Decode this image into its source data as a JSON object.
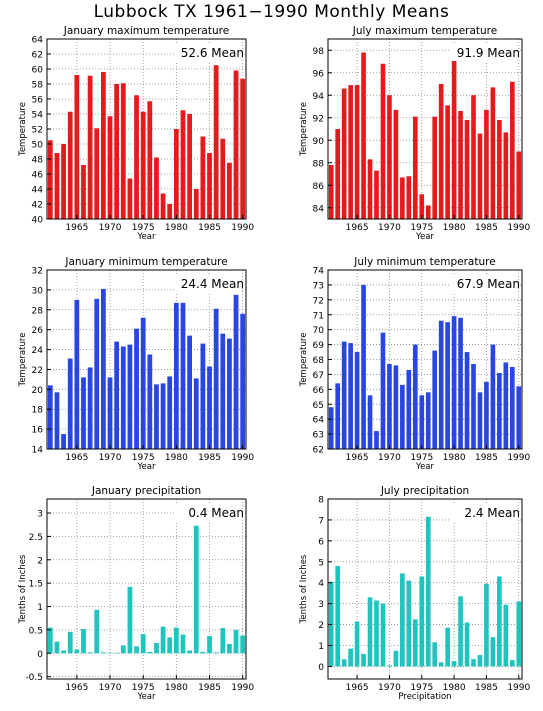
{
  "page_title": "Lubbock TX   1961−1990 Monthly Means",
  "colors": {
    "red": "#e41a1c",
    "blue": "#2a46e0",
    "teal": "#20c4bf",
    "grid": "#888888"
  },
  "chart_data": [
    {
      "type": "bar",
      "title": "January maximum temperature",
      "xlabel": "Year",
      "ylabel": "Temperature",
      "mean_label": "52.6 Mean",
      "color": "red",
      "grid": true,
      "xlim": [
        1961,
        1990
      ],
      "ylim": [
        40,
        64
      ],
      "yticks": [
        40,
        42,
        44,
        46,
        48,
        50,
        52,
        54,
        56,
        58,
        60,
        62,
        64
      ],
      "xticks": [
        1965,
        1970,
        1975,
        1980,
        1985,
        1990
      ],
      "x": [
        1961,
        1962,
        1963,
        1964,
        1965,
        1966,
        1967,
        1968,
        1969,
        1970,
        1971,
        1972,
        1973,
        1974,
        1975,
        1976,
        1977,
        1978,
        1979,
        1980,
        1981,
        1982,
        1983,
        1984,
        1985,
        1986,
        1987,
        1988,
        1989,
        1990
      ],
      "values": [
        50.5,
        48.8,
        50,
        54.3,
        59.2,
        47.2,
        59.1,
        52.1,
        59.6,
        53.7,
        58,
        58.1,
        45.4,
        56.5,
        54.3,
        55.7,
        48.2,
        43.4,
        42,
        52,
        54.5,
        54,
        44,
        51,
        48.8,
        60.5,
        50.7,
        47.5,
        59.8,
        58.7
      ]
    },
    {
      "type": "bar",
      "title": "July maximum temperature",
      "xlabel": "Year",
      "ylabel": "Temperature",
      "mean_label": "91.9 Mean",
      "color": "red",
      "grid": true,
      "xlim": [
        1961,
        1990
      ],
      "ylim": [
        83,
        99
      ],
      "yticks": [
        84,
        86,
        88,
        90,
        92,
        94,
        96,
        98
      ],
      "xticks": [
        1965,
        1970,
        1975,
        1980,
        1985,
        1990
      ],
      "x": [
        1961,
        1962,
        1963,
        1964,
        1965,
        1966,
        1967,
        1968,
        1969,
        1970,
        1971,
        1972,
        1973,
        1974,
        1975,
        1976,
        1977,
        1978,
        1979,
        1980,
        1981,
        1982,
        1983,
        1984,
        1985,
        1986,
        1987,
        1988,
        1989,
        1990
      ],
      "values": [
        87.8,
        91,
        94.6,
        94.9,
        94.9,
        97.8,
        88.3,
        87.3,
        96.8,
        94,
        92.7,
        86.7,
        86.8,
        92.1,
        85.2,
        84.2,
        92.1,
        95,
        93.1,
        97.7,
        92.6,
        91.8,
        94,
        90.6,
        92.7,
        94.7,
        91.8,
        90.7,
        95.2,
        89
      ]
    },
    {
      "type": "bar",
      "title": "January minimum temperature",
      "xlabel": "Year",
      "ylabel": "Temperature",
      "mean_label": "24.4 Mean",
      "color": "blue",
      "grid": true,
      "xlim": [
        1961,
        1990
      ],
      "ylim": [
        14,
        32
      ],
      "yticks": [
        14,
        16,
        18,
        20,
        22,
        24,
        26,
        28,
        30,
        32
      ],
      "xticks": [
        1965,
        1970,
        1975,
        1980,
        1985,
        1990
      ],
      "x": [
        1961,
        1962,
        1963,
        1964,
        1965,
        1966,
        1967,
        1968,
        1969,
        1970,
        1971,
        1972,
        1973,
        1974,
        1975,
        1976,
        1977,
        1978,
        1979,
        1980,
        1981,
        1982,
        1983,
        1984,
        1985,
        1986,
        1987,
        1988,
        1989,
        1990
      ],
      "values": [
        20.4,
        19.7,
        15.5,
        23.1,
        29,
        21.2,
        22.2,
        29.1,
        30.1,
        21.2,
        24.8,
        24.3,
        24.5,
        26.1,
        27.2,
        23.5,
        20.5,
        20.6,
        21.3,
        28.7,
        28.7,
        25.4,
        21.1,
        24.6,
        22.3,
        28.1,
        25.6,
        25.1,
        29.5,
        27.6
      ]
    },
    {
      "type": "bar",
      "title": "July minimum temperature",
      "xlabel": "Year",
      "ylabel": "Temperature",
      "mean_label": "67.9 Mean",
      "color": "blue",
      "grid": true,
      "xlim": [
        1961,
        1990
      ],
      "ylim": [
        62,
        74
      ],
      "yticks": [
        62,
        63,
        64,
        65,
        66,
        67,
        68,
        69,
        70,
        71,
        72,
        73,
        74
      ],
      "xticks": [
        1965,
        1970,
        1975,
        1980,
        1985,
        1990
      ],
      "x": [
        1961,
        1962,
        1963,
        1964,
        1965,
        1966,
        1967,
        1968,
        1969,
        1970,
        1971,
        1972,
        1973,
        1974,
        1975,
        1976,
        1977,
        1978,
        1979,
        1980,
        1981,
        1982,
        1983,
        1984,
        1985,
        1986,
        1987,
        1988,
        1989,
        1990
      ],
      "values": [
        64.8,
        66.4,
        69.2,
        69.1,
        68.5,
        73,
        65.6,
        63.2,
        69.8,
        67.7,
        67.6,
        66.3,
        67.3,
        69,
        65.6,
        65.8,
        68.6,
        70.6,
        70.5,
        70.9,
        70.8,
        68.5,
        67.7,
        65.8,
        66.5,
        69,
        67.1,
        67.8,
        67.5,
        66.2
      ]
    },
    {
      "type": "bar",
      "title": "January precipitation",
      "xlabel": "Year",
      "ylabel": "Tenths of Inches",
      "mean_label": "0.4 Mean",
      "color": "teal",
      "grid": true,
      "xlim": [
        1961,
        1990
      ],
      "ylim": [
        -0.55,
        3.3
      ],
      "yticks": [
        -0.5,
        0,
        0.5,
        1,
        1.5,
        2,
        2.5,
        3
      ],
      "xticks": [
        1965,
        1970,
        1975,
        1980,
        1985,
        1990
      ],
      "x": [
        1961,
        1962,
        1963,
        1964,
        1965,
        1966,
        1967,
        1968,
        1969,
        1970,
        1971,
        1972,
        1973,
        1974,
        1975,
        1976,
        1977,
        1978,
        1979,
        1980,
        1981,
        1982,
        1983,
        1984,
        1985,
        1986,
        1987,
        1988,
        1989,
        1990
      ],
      "values": [
        0.55,
        0.25,
        0.06,
        0.46,
        0.08,
        0.52,
        0.02,
        0.93,
        0.02,
        0.01,
        0.01,
        0.17,
        1.42,
        0.15,
        0.41,
        0.03,
        0.22,
        0.57,
        0.34,
        0.55,
        0.4,
        0.06,
        2.73,
        0.03,
        0.37,
        0.02,
        0.54,
        0.2,
        0.5,
        0.38
      ]
    },
    {
      "type": "bar",
      "title": "July precipitation",
      "xlabel": "Precipitation",
      "ylabel": "Tenths of Inches",
      "mean_label": "2.4 Mean",
      "color": "teal",
      "grid": true,
      "xlim": [
        1961,
        1990
      ],
      "ylim": [
        -0.6,
        8
      ],
      "yticks": [
        0,
        1,
        2,
        3,
        4,
        5,
        6,
        7,
        8
      ],
      "xticks": [
        1965,
        1970,
        1975,
        1980,
        1985,
        1990
      ],
      "x": [
        1961,
        1962,
        1963,
        1964,
        1965,
        1966,
        1967,
        1968,
        1969,
        1970,
        1971,
        1972,
        1973,
        1974,
        1975,
        1976,
        1977,
        1978,
        1979,
        1980,
        1981,
        1982,
        1983,
        1984,
        1985,
        1986,
        1987,
        1988,
        1989,
        1990
      ],
      "values": [
        4.05,
        4.8,
        0.35,
        0.85,
        2.15,
        0.6,
        3.3,
        3.15,
        3,
        0.05,
        0.75,
        4.45,
        4.1,
        2.25,
        4.3,
        7.15,
        1.15,
        0.2,
        1.85,
        0.25,
        3.35,
        2.1,
        0.35,
        0.55,
        3.95,
        1.4,
        4.3,
        2.95,
        0.3,
        3.1
      ]
    }
  ]
}
